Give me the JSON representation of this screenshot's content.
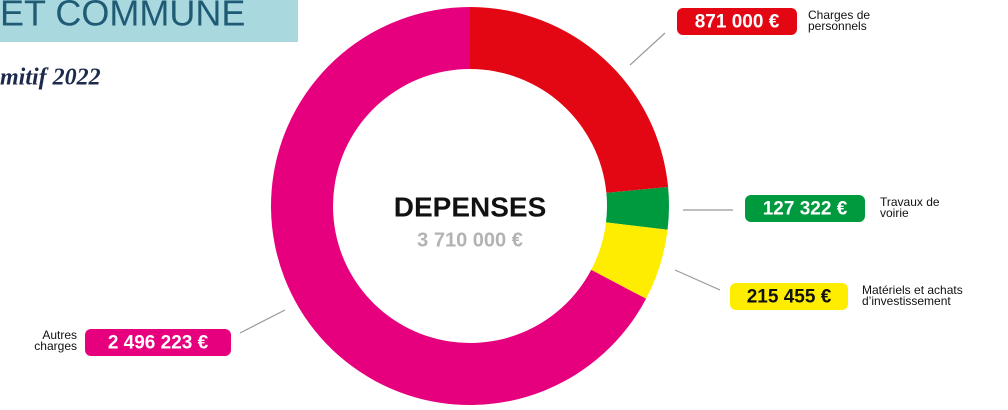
{
  "header": {
    "title": "ET COMMUNE",
    "subtitle": "mitif 2022"
  },
  "chart_data": {
    "type": "donut",
    "center_title": "DEPENSES",
    "center_total": "3 710 000 €",
    "categories": [
      "Charges de\npersonnels",
      "Travaux de\nvoirie",
      "Matériels et achats\nd’investissement",
      "Autres\ncharges"
    ],
    "values": [
      871000,
      127322,
      215455,
      2496223
    ],
    "value_labels": [
      "871 000 €",
      "127 322 €",
      "215 455 €",
      "2 496 223 €"
    ],
    "colors": [
      "#e30613",
      "#009a3e",
      "#ffed00",
      "#e6007e"
    ]
  }
}
